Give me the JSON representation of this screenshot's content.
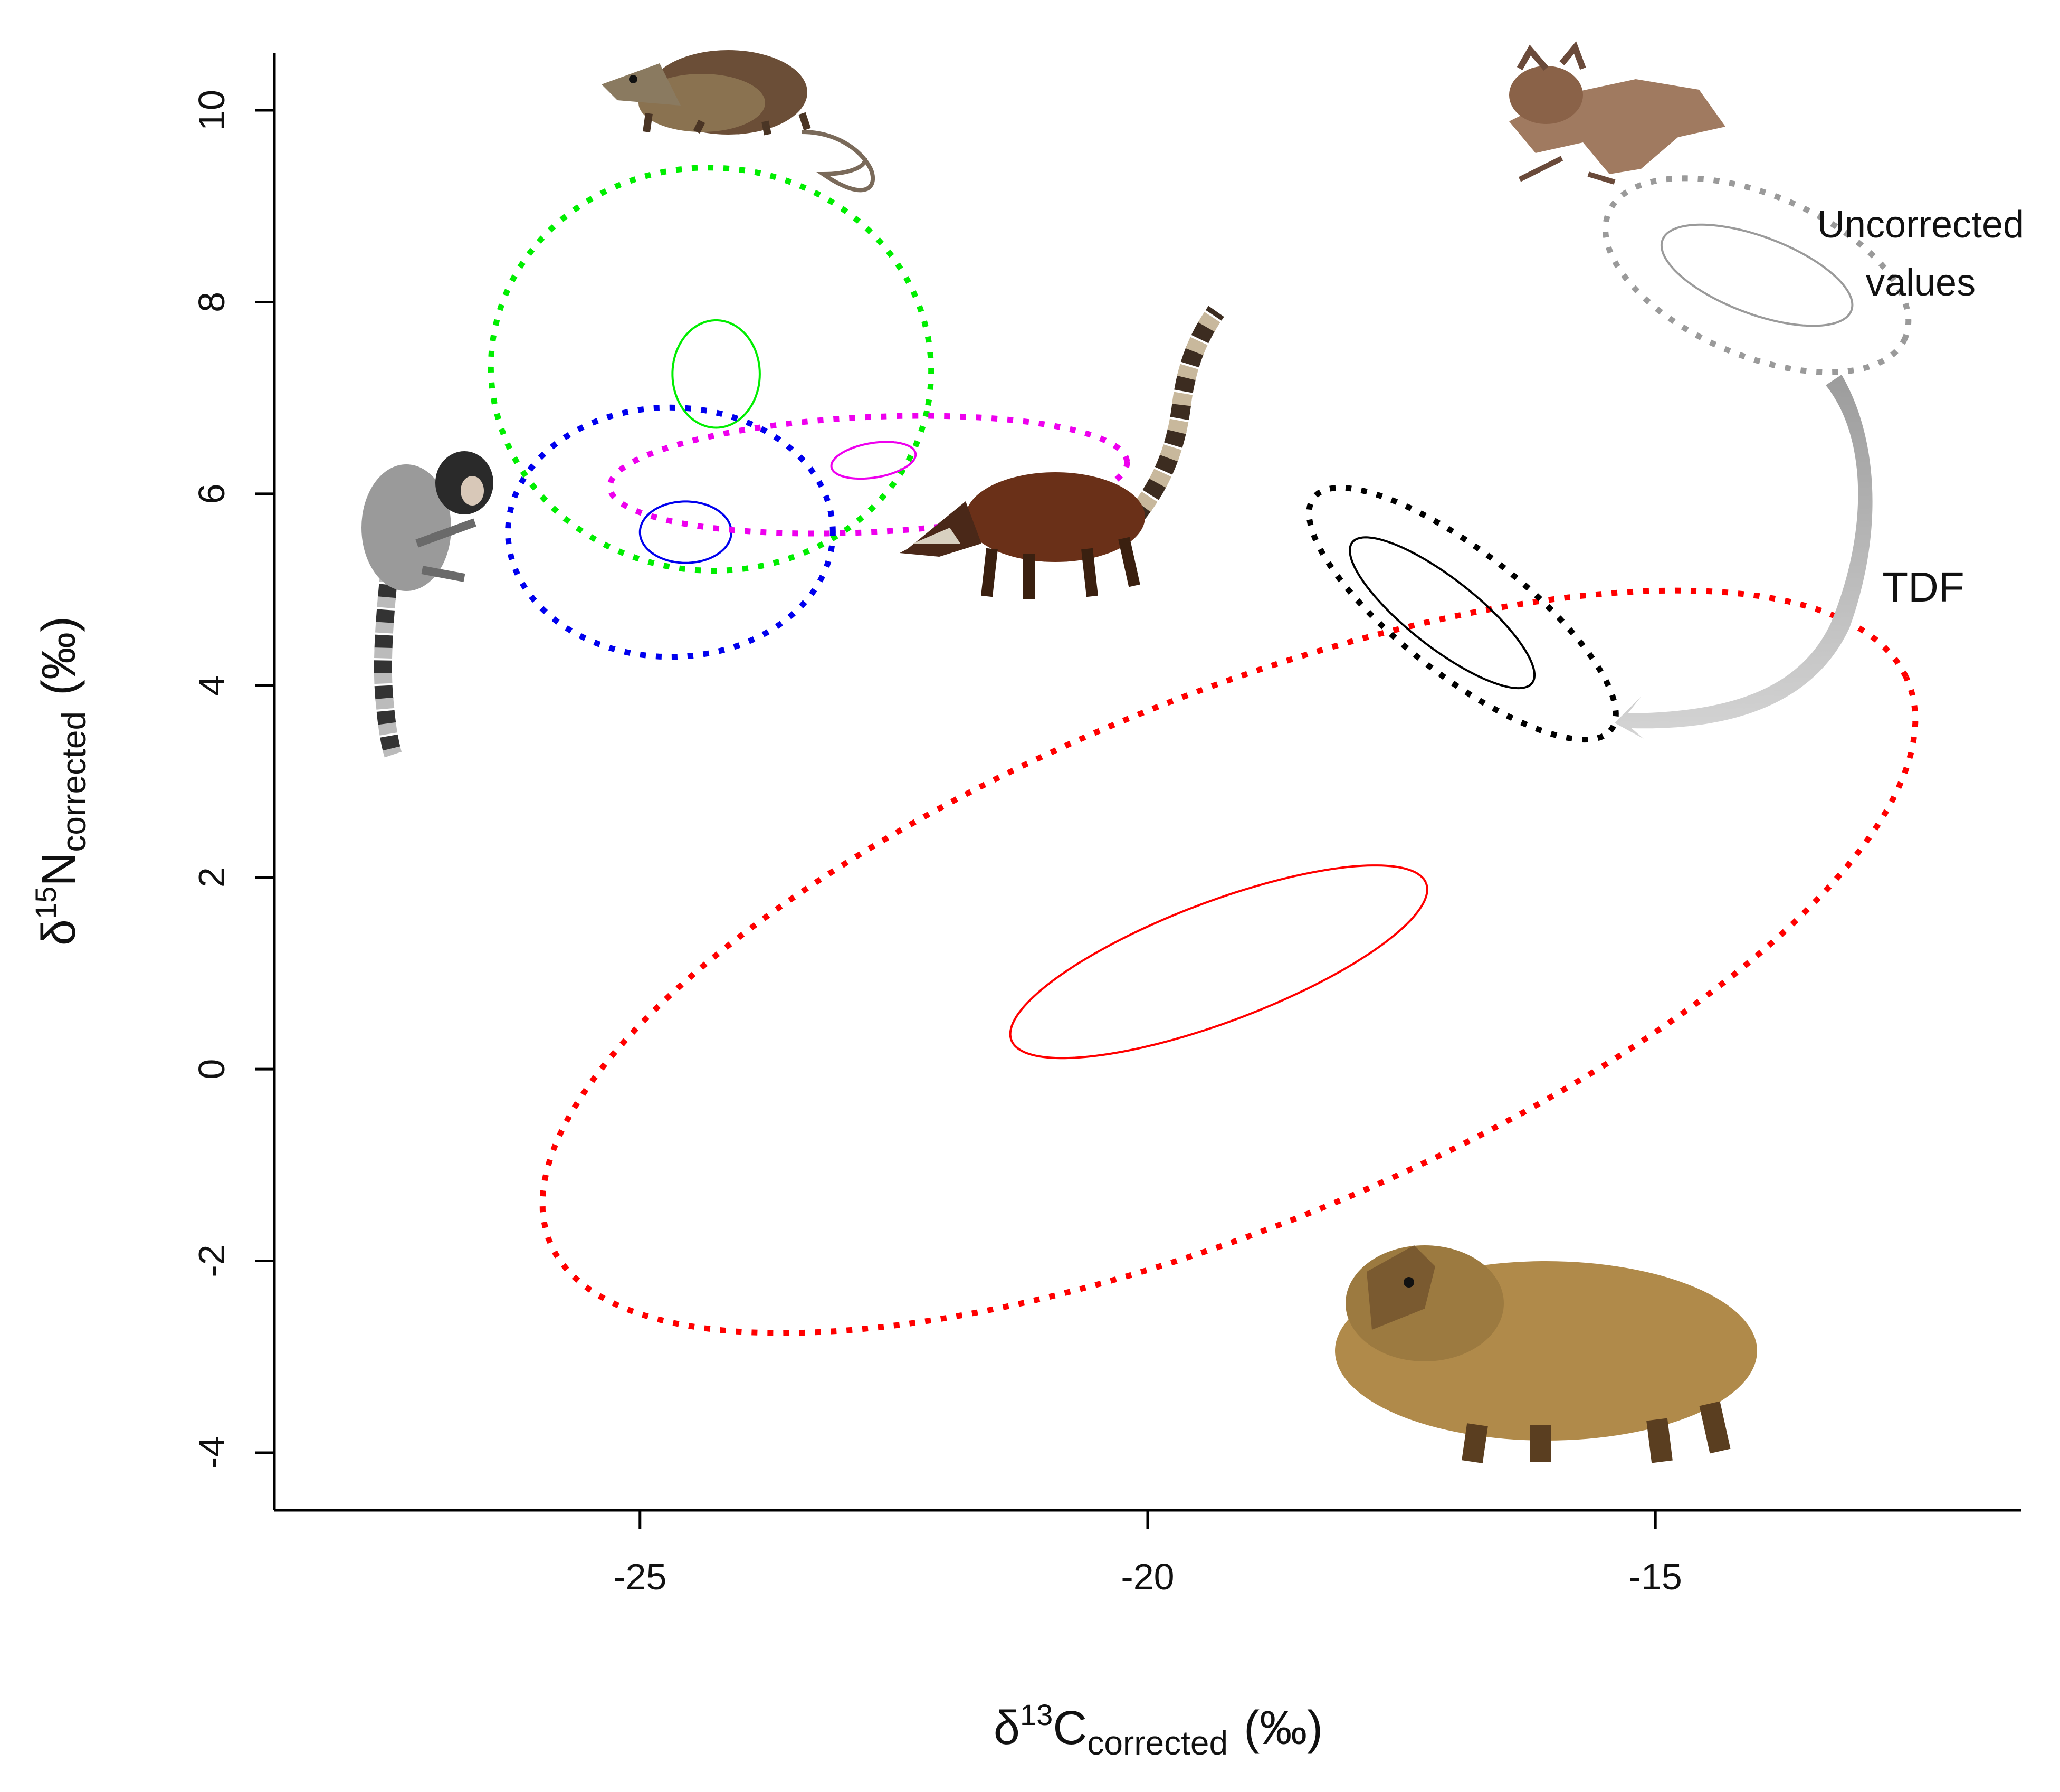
{
  "chart_data": {
    "type": "ellipse-plot",
    "x_axis": {
      "label_symbol": "δ",
      "label_superscript": "13",
      "label_element": "C",
      "label_subscript": "corrected",
      "label_unit": "(‰)",
      "range": [
        -28.6,
        -11.4
      ],
      "ticks": [
        -25,
        -20,
        -15
      ],
      "tick_labels": [
        "-25",
        "-20",
        "-15"
      ]
    },
    "y_axis": {
      "label_symbol": "δ",
      "label_superscript": "15",
      "label_element": "N",
      "label_subscript": "corrected",
      "label_unit": "(‰)",
      "range": [
        -4.6,
        10.6
      ],
      "ticks": [
        -4,
        -2,
        0,
        2,
        4,
        6,
        8,
        10
      ],
      "tick_labels": [
        "-4",
        "-2",
        "0",
        "2",
        "4",
        "6",
        "8",
        "10"
      ]
    },
    "grid": false,
    "series": [
      {
        "color": "#ff0000",
        "ellipses": [
          {
            "style": "solid",
            "cx": -19.3,
            "cy": 1.12,
            "a": 2.2,
            "b": 0.62,
            "angle": 22
          },
          {
            "style": "dotted",
            "cx": -19.2,
            "cy": 1.12,
            "a": 7.3,
            "b": 2.72,
            "angle": 24
          }
        ]
      },
      {
        "color": "#000000",
        "ellipses": [
          {
            "style": "solid",
            "cx": -17.1,
            "cy": 4.76,
            "a": 1.15,
            "b": 0.35,
            "angle": -40
          },
          {
            "style": "dotted",
            "cx": -16.9,
            "cy": 4.75,
            "a": 1.9,
            "b": 0.63,
            "angle": -40
          }
        ]
      },
      {
        "color": "#00ee00",
        "ellipses": [
          {
            "style": "solid",
            "cx": -24.25,
            "cy": 7.25,
            "a": 0.43,
            "b": 0.56,
            "angle": 0
          },
          {
            "style": "dotted",
            "cx": -24.3,
            "cy": 7.3,
            "a": 2.17,
            "b": 2.1,
            "angle": -10
          }
        ]
      },
      {
        "color": "#0000ee",
        "ellipses": [
          {
            "style": "solid",
            "cx": -24.55,
            "cy": 5.6,
            "a": 0.45,
            "b": 0.32,
            "angle": 0
          },
          {
            "style": "dotted",
            "cx": -24.7,
            "cy": 5.6,
            "a": 1.6,
            "b": 1.3,
            "angle": 0
          }
        ]
      },
      {
        "color": "#ee00ee",
        "ellipses": [
          {
            "style": "solid",
            "cx": -22.7,
            "cy": 6.35,
            "a": 0.42,
            "b": 0.18,
            "angle": 10
          },
          {
            "style": "dotted",
            "cx": -22.75,
            "cy": 6.2,
            "a": 2.55,
            "b": 0.6,
            "angle": 3
          }
        ]
      },
      {
        "color": "#9a9a9a",
        "ellipses": [
          {
            "style": "solid",
            "cx": -14.0,
            "cy": 8.28,
            "a": 1.0,
            "b": 0.4,
            "angle": -22
          },
          {
            "style": "dotted",
            "cx": -14.0,
            "cy": 8.28,
            "a": 1.6,
            "b": 0.83,
            "angle": -25
          }
        ]
      }
    ],
    "annotations": {
      "uncorrected_line1": "Uncorrected",
      "uncorrected_line2": "values",
      "tdf": "TDF"
    }
  },
  "animal_icons": [
    "opossum-icon",
    "bat-icon",
    "coati-icon",
    "marmoset-icon",
    "capybara-icon"
  ]
}
